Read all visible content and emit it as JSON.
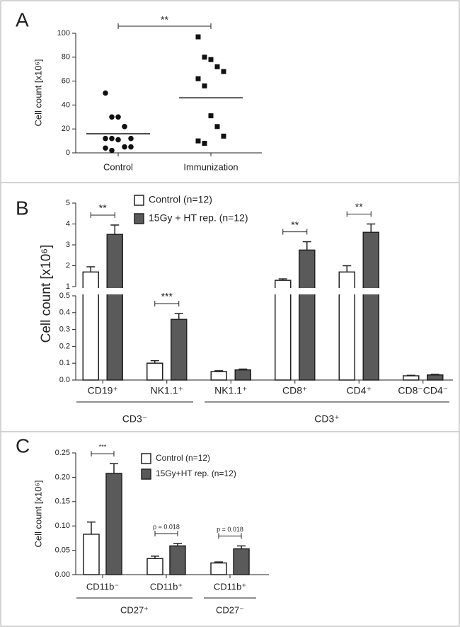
{
  "chart_data": [
    {
      "type": "scatter",
      "panel_label": "A",
      "y_label": "Cell count [x10⁶]",
      "categories": [
        "Control",
        "Immunization"
      ],
      "values": [
        [
          50,
          30,
          30,
          22,
          12,
          12,
          12,
          11,
          5,
          5,
          4,
          2
        ],
        [
          97,
          80,
          78,
          72,
          68,
          62,
          56,
          31,
          22,
          14,
          10,
          8
        ]
      ],
      "means": [
        16,
        46
      ],
      "markers": [
        "circle",
        "square"
      ],
      "color": "#111111",
      "ylim": [
        0,
        100
      ],
      "yticks": [
        0,
        20,
        40,
        60,
        80,
        100
      ],
      "annotations": [
        {
          "text": "**",
          "from": 0,
          "to": 1
        }
      ]
    },
    {
      "type": "bar",
      "panel_label": "B",
      "y_label": "Cell count [x10⁶]",
      "categories": [
        "CD19⁺",
        "NK1.1⁺",
        "NK1.1⁺",
        "CD8⁺",
        "CD4⁺",
        "CD8⁻CD4⁻"
      ],
      "groups": [
        {
          "label": "CD3⁻",
          "from": 0,
          "to": 1
        },
        {
          "label": "CD3⁺",
          "from": 2,
          "to": 5
        }
      ],
      "series": [
        {
          "name": "Control (n=12)",
          "color": "#ffffff",
          "values": [
            1.7,
            0.1,
            0.05,
            1.3,
            1.7,
            0.025
          ],
          "errors": [
            0.25,
            0.015,
            0.005,
            0.07,
            0.3,
            0.003
          ]
        },
        {
          "name": "15Gy + HT rep. (n=12)",
          "color": "#5a5a5a",
          "values": [
            3.5,
            0.36,
            0.06,
            2.75,
            3.6,
            0.03
          ],
          "errors": [
            0.45,
            0.035,
            0.005,
            0.4,
            0.4,
            0.004
          ]
        }
      ],
      "ylim": [
        0,
        5
      ],
      "axis_break": [
        0.5,
        1
      ],
      "yticks": [
        {
          "value": 0,
          "label": "0.0"
        },
        0.1,
        0.2,
        0.3,
        0.4,
        0.5,
        1,
        2,
        3,
        4,
        5
      ],
      "annotations": [
        {
          "text": "**",
          "category": 0
        },
        {
          "text": "***",
          "category": 1
        },
        {
          "text": "**",
          "category": 3
        },
        {
          "text": "**",
          "category": 4
        }
      ]
    },
    {
      "type": "bar",
      "panel_label": "C",
      "y_label": "Cell count [x10⁶]",
      "categories": [
        "CD11b⁻",
        "CD11b⁺",
        "CD11b⁺"
      ],
      "groups": [
        {
          "label": "CD27⁺",
          "from": 0,
          "to": 1
        },
        {
          "label": "CD27⁻",
          "from": 2,
          "to": 2
        }
      ],
      "series": [
        {
          "name": "Control (n=12)",
          "color": "#ffffff",
          "values": [
            0.083,
            0.033,
            0.024
          ],
          "errors": [
            0.025,
            0.005,
            0.002
          ]
        },
        {
          "name": "15Gy+HT rep. (n=12)",
          "color": "#5a5a5a",
          "values": [
            0.208,
            0.059,
            0.053
          ],
          "errors": [
            0.02,
            0.005,
            0.006
          ]
        }
      ],
      "ylim": [
        0,
        0.25
      ],
      "yticks": [
        {
          "value": 0,
          "label": "0.00"
        },
        0.05,
        {
          "value": 0.1,
          "label": "0.10"
        },
        0.15,
        {
          "value": 0.2,
          "label": "0.20"
        },
        0.25
      ],
      "annotations": [
        {
          "text": "***",
          "category": 0
        },
        {
          "text": "p = 0.018",
          "category": 1
        },
        {
          "text": "p = 0.018",
          "category": 2
        }
      ]
    }
  ]
}
